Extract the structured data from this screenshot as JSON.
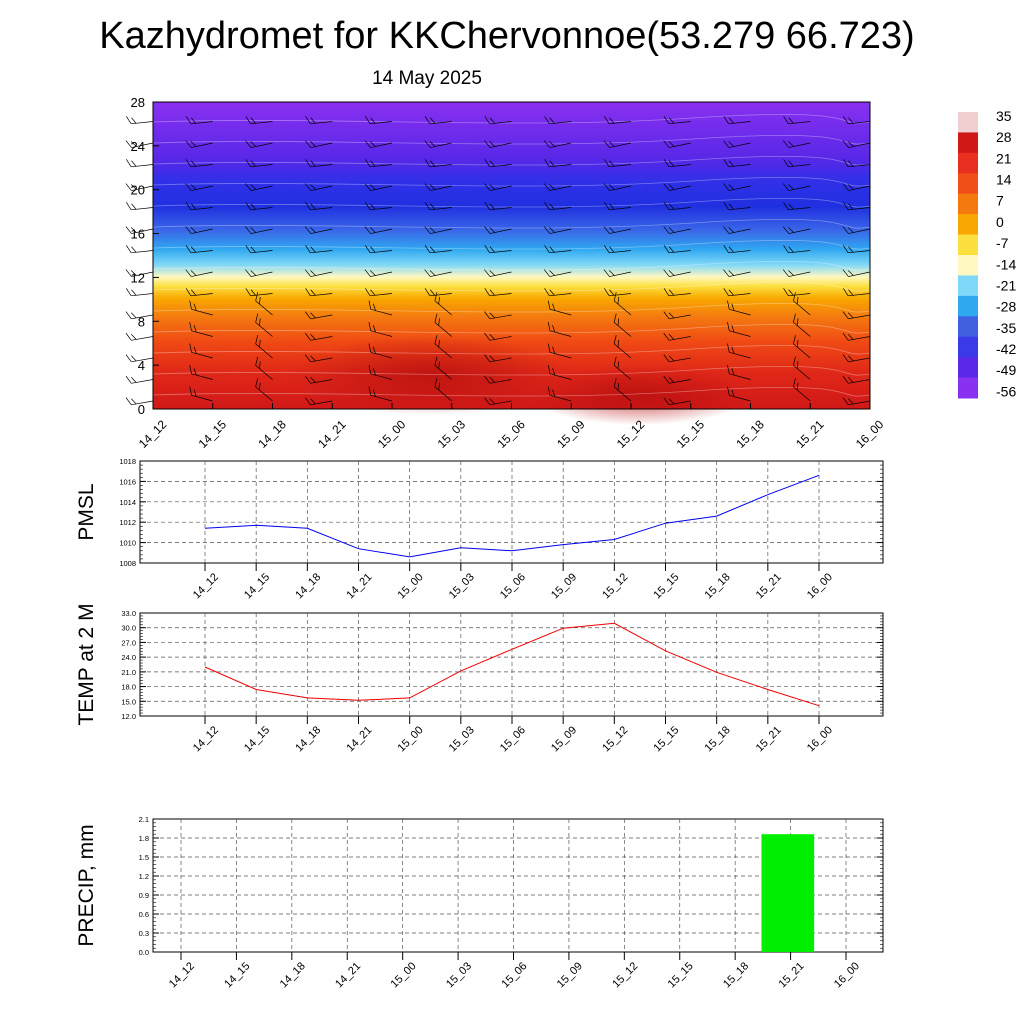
{
  "title": "Kazhydromet for KKChervonnoe(53.279 66.723)",
  "subtitle": "14 May 2025",
  "colorbar": {
    "labels": [
      "35",
      "28",
      "21",
      "14",
      "7",
      "0",
      "-7",
      "-14",
      "-21",
      "-28",
      "-35",
      "-42",
      "-49",
      "-56"
    ],
    "colors": [
      "#f0d0d0",
      "#d01818",
      "#e83020",
      "#f05018",
      "#f47a10",
      "#f8a800",
      "#fce040",
      "#fff8c0",
      "#80d8f8",
      "#30a8f0",
      "#4060e0",
      "#3a3ae8",
      "#5a28e8",
      "#8a30f0"
    ]
  },
  "chart_data": [
    {
      "type": "heatmap",
      "name": "cross-section",
      "x": [
        "14_12",
        "14_15",
        "14_18",
        "14_21",
        "15_00",
        "15_03",
        "15_06",
        "15_09",
        "15_12",
        "15_15",
        "15_18",
        "15_21",
        "16_00"
      ],
      "ylim": [
        0,
        28
      ],
      "yticks": [
        0,
        4,
        8,
        12,
        16,
        20,
        24,
        28
      ],
      "value_range": [
        -56,
        35
      ]
    },
    {
      "type": "line",
      "ylabel": "PMSL",
      "x": [
        "14_12",
        "14_15",
        "14_18",
        "14_21",
        "15_00",
        "15_03",
        "15_06",
        "15_09",
        "15_12",
        "15_15",
        "15_18",
        "15_21",
        "16_00"
      ],
      "values": [
        1011.4,
        1011.7,
        1011.4,
        1009.4,
        1008.6,
        1009.5,
        1009.2,
        1009.8,
        1010.3,
        1011.9,
        1012.6,
        1014.7,
        1016.6
      ],
      "ylim": [
        1008,
        1018
      ],
      "yticks": [
        "1008",
        "1010",
        "1012",
        "1014",
        "1016",
        "1018"
      ],
      "color": "#0000ee"
    },
    {
      "type": "line",
      "ylabel": "TEMP at 2 M",
      "x": [
        "14_12",
        "14_15",
        "14_18",
        "14_21",
        "15_00",
        "15_03",
        "15_06",
        "15_09",
        "15_12",
        "15_15",
        "15_18",
        "15_21",
        "16_00"
      ],
      "values": [
        22.0,
        17.4,
        15.7,
        15.2,
        15.7,
        21.2,
        25.6,
        29.9,
        30.9,
        25.3,
        20.9,
        17.4,
        14.1
      ],
      "ylim": [
        12,
        33
      ],
      "yticks": [
        "12.0",
        "15.0",
        "18.0",
        "21.0",
        "24.0",
        "27.0",
        "30.0",
        "33.0"
      ],
      "color": "#ee0000"
    },
    {
      "type": "bar",
      "ylabel": "PRECIP, mm",
      "x": [
        "14_12",
        "14_15",
        "14_18",
        "14_21",
        "15_00",
        "15_03",
        "15_06",
        "15_09",
        "15_12",
        "15_15",
        "15_18",
        "15_21",
        "16_00"
      ],
      "values": [
        0,
        0,
        0,
        0,
        0,
        0,
        0,
        0,
        0,
        0,
        0,
        1.86,
        0
      ],
      "ylim": [
        0,
        2.1
      ],
      "yticks": [
        "0.0",
        "0.3",
        "0.6",
        "0.9",
        "1.2",
        "1.5",
        "1.8",
        "2.1"
      ],
      "color": "#00ee00"
    }
  ]
}
